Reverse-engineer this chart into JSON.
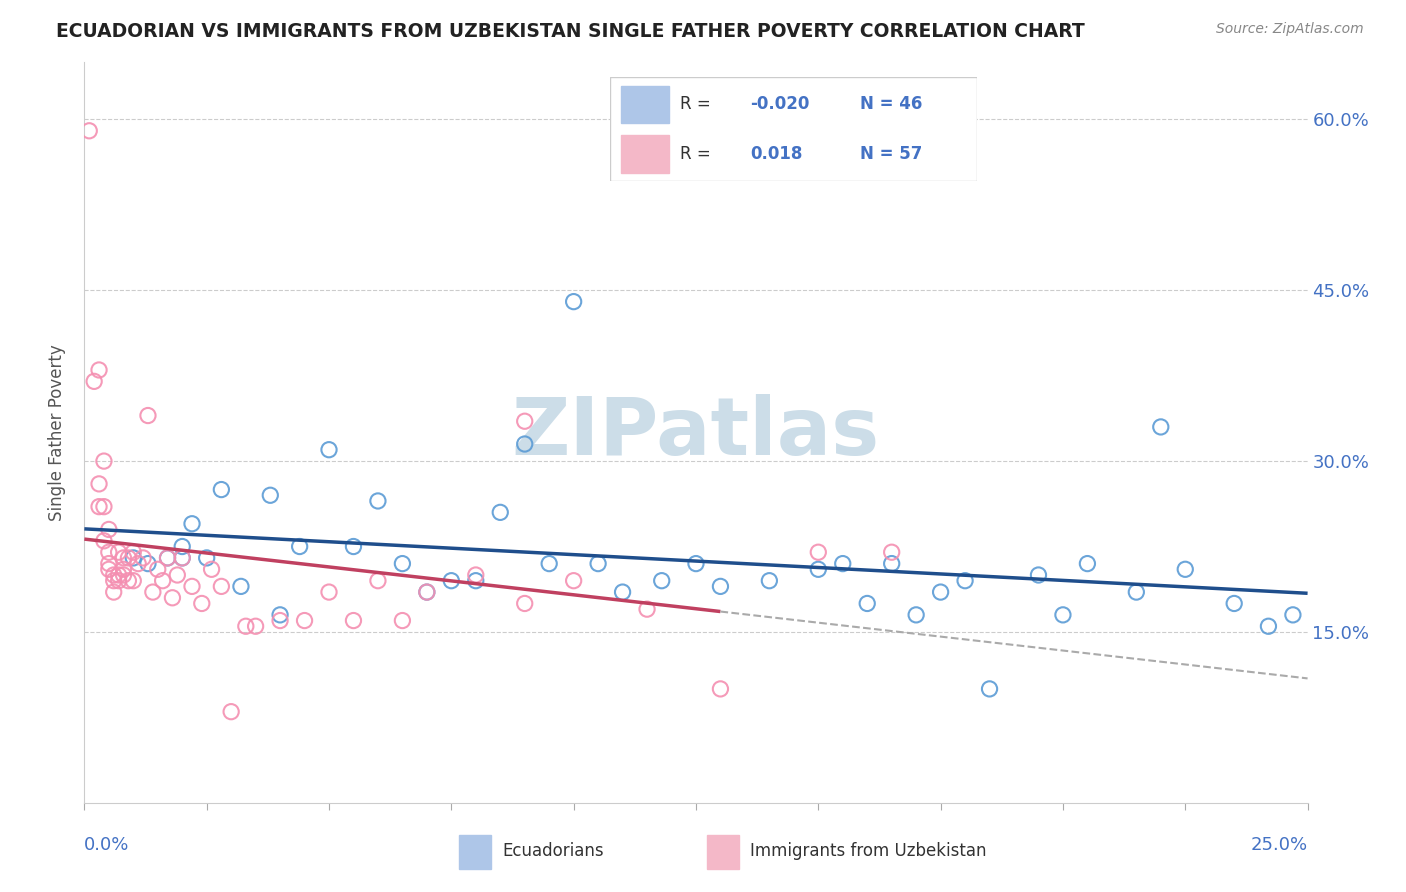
{
  "title": "ECUADORIAN VS IMMIGRANTS FROM UZBEKISTAN SINGLE FATHER POVERTY CORRELATION CHART",
  "source": "Source: ZipAtlas.com",
  "ylabel": "Single Father Poverty",
  "x_range": [
    0.0,
    0.25
  ],
  "y_range": [
    0.0,
    0.65
  ],
  "y_ticks": [
    0.15,
    0.3,
    0.45,
    0.6
  ],
  "y_tick_labels": [
    "15.0%",
    "30.0%",
    "45.0%",
    "60.0%"
  ],
  "series1_color": "#5b9bd5",
  "series2_color": "#f48fb1",
  "trendline1_color": "#1f4e8c",
  "trendline2_color": "#c04060",
  "watermark": "ZIPatlas",
  "watermark_color": "#ccdde8",
  "legend_blue_patch": "#aec6e8",
  "legend_pink_patch": "#f4b8c8",
  "legend_R1": "-0.020",
  "legend_N1": "46",
  "legend_R2": "0.018",
  "legend_N2": "57",
  "blue_points_x": [
    0.01,
    0.013,
    0.017,
    0.02,
    0.02,
    0.022,
    0.025,
    0.028,
    0.032,
    0.038,
    0.04,
    0.044,
    0.05,
    0.055,
    0.06,
    0.065,
    0.07,
    0.075,
    0.08,
    0.085,
    0.09,
    0.095,
    0.1,
    0.105,
    0.11,
    0.118,
    0.125,
    0.13,
    0.14,
    0.15,
    0.155,
    0.16,
    0.165,
    0.17,
    0.175,
    0.18,
    0.185,
    0.195,
    0.2,
    0.205,
    0.215,
    0.22,
    0.225,
    0.235,
    0.242,
    0.247
  ],
  "blue_points_y": [
    0.215,
    0.21,
    0.215,
    0.215,
    0.225,
    0.245,
    0.215,
    0.275,
    0.19,
    0.27,
    0.165,
    0.225,
    0.31,
    0.225,
    0.265,
    0.21,
    0.185,
    0.195,
    0.195,
    0.255,
    0.315,
    0.21,
    0.44,
    0.21,
    0.185,
    0.195,
    0.21,
    0.19,
    0.195,
    0.205,
    0.21,
    0.175,
    0.21,
    0.165,
    0.185,
    0.195,
    0.1,
    0.2,
    0.165,
    0.21,
    0.185,
    0.33,
    0.205,
    0.175,
    0.155,
    0.165
  ],
  "pink_points_x": [
    0.001,
    0.002,
    0.003,
    0.003,
    0.003,
    0.004,
    0.004,
    0.004,
    0.005,
    0.005,
    0.005,
    0.005,
    0.006,
    0.006,
    0.006,
    0.007,
    0.007,
    0.007,
    0.008,
    0.008,
    0.008,
    0.009,
    0.009,
    0.01,
    0.01,
    0.011,
    0.012,
    0.013,
    0.014,
    0.015,
    0.016,
    0.017,
    0.018,
    0.019,
    0.02,
    0.022,
    0.024,
    0.026,
    0.028,
    0.03,
    0.033,
    0.035,
    0.04,
    0.045,
    0.05,
    0.055,
    0.06,
    0.065,
    0.07,
    0.08,
    0.09,
    0.1,
    0.115,
    0.13,
    0.15,
    0.165,
    0.09
  ],
  "pink_points_y": [
    0.59,
    0.37,
    0.38,
    0.28,
    0.26,
    0.3,
    0.26,
    0.23,
    0.24,
    0.22,
    0.21,
    0.205,
    0.2,
    0.195,
    0.185,
    0.22,
    0.2,
    0.195,
    0.215,
    0.205,
    0.2,
    0.215,
    0.195,
    0.22,
    0.195,
    0.21,
    0.215,
    0.34,
    0.185,
    0.205,
    0.195,
    0.215,
    0.18,
    0.2,
    0.215,
    0.19,
    0.175,
    0.205,
    0.19,
    0.08,
    0.155,
    0.155,
    0.16,
    0.16,
    0.185,
    0.16,
    0.195,
    0.16,
    0.185,
    0.2,
    0.175,
    0.195,
    0.17,
    0.1,
    0.22,
    0.22,
    0.335
  ]
}
